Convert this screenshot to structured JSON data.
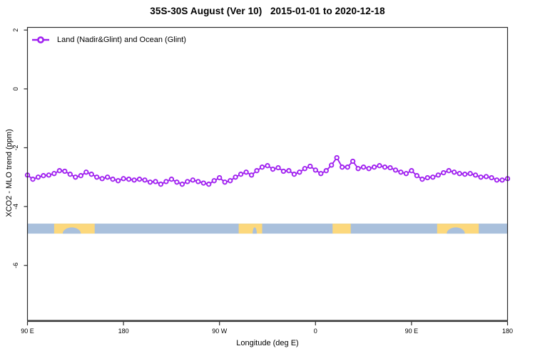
{
  "title": "35S-30S August (Ver 10)   2015-01-01 to 2020-12-18",
  "legend": {
    "label": "Land (Nadir&Glint) and Ocean (Glint)"
  },
  "axes": {
    "xlabel": "Longitude (deg E)",
    "ylabel": "XCO2 - MLO trend (ppm)"
  },
  "chart_data": {
    "type": "line",
    "title": "35S-30S August (Ver 10)   2015-01-01 to 2020-12-18",
    "xlabel": "Longitude (deg E)",
    "ylabel": "XCO2 - MLO trend (ppm)",
    "legend_position": "top-left",
    "grid": false,
    "x_axis": {
      "description": "Longitude wrapping eastward from 90E through 180, 90W, 0, 90E to 180",
      "range_deg_east_of_90E": [
        0,
        450
      ],
      "tick_offsets_deg": [
        0,
        90,
        180,
        270,
        360,
        450
      ],
      "tick_labels": [
        "90 E",
        "180",
        "90 W",
        "0",
        "90 E",
        "180"
      ]
    },
    "y_axis": {
      "lim": [
        -7.87,
        2.09
      ],
      "ticks": [
        2,
        0,
        -2,
        -4,
        -6
      ],
      "tick_labels": [
        "2",
        "0",
        "-2",
        "-4",
        "-6"
      ]
    },
    "series": [
      {
        "name": "Land (Nadir&Glint) and Ocean (Glint)",
        "color": "#A020F0",
        "marker": "open-circle",
        "x_start_deg": 0,
        "x_step_deg": 5,
        "values": [
          -2.93,
          -3.07,
          -3.0,
          -2.95,
          -2.93,
          -2.88,
          -2.78,
          -2.8,
          -2.9,
          -3.0,
          -2.95,
          -2.83,
          -2.9,
          -3.0,
          -3.05,
          -3.0,
          -3.07,
          -3.12,
          -3.05,
          -3.07,
          -3.1,
          -3.07,
          -3.1,
          -3.17,
          -3.15,
          -3.24,
          -3.15,
          -3.07,
          -3.17,
          -3.24,
          -3.15,
          -3.1,
          -3.15,
          -3.2,
          -3.24,
          -3.12,
          -3.02,
          -3.17,
          -3.12,
          -3.0,
          -2.9,
          -2.83,
          -2.93,
          -2.78,
          -2.66,
          -2.61,
          -2.73,
          -2.68,
          -2.8,
          -2.78,
          -2.9,
          -2.83,
          -2.71,
          -2.63,
          -2.76,
          -2.88,
          -2.78,
          -2.59,
          -2.34,
          -2.66,
          -2.66,
          -2.46,
          -2.71,
          -2.66,
          -2.71,
          -2.66,
          -2.61,
          -2.66,
          -2.68,
          -2.76,
          -2.83,
          -2.88,
          -2.78,
          -2.95,
          -3.07,
          -3.02,
          -3.0,
          -2.93,
          -2.85,
          -2.78,
          -2.83,
          -2.88,
          -2.9,
          -2.88,
          -2.93,
          -3.0,
          -2.98,
          -3.02,
          -3.1,
          -3.1,
          -3.05
        ]
      }
    ],
    "land_ocean_band": {
      "description": "Strip along longitude axis showing land (yellow) vs ocean (blue)",
      "y_range": [
        -4.92,
        -4.58
      ],
      "ocean_color": "#A9C0DC",
      "land_color": "#FCD87C",
      "land_segments_deg": [
        [
          25,
          63
        ],
        [
          198,
          220
        ],
        [
          286,
          303
        ],
        [
          384,
          423
        ]
      ],
      "ocean_notches_deg": [
        [
          33,
          50
        ],
        [
          211,
          215
        ],
        [
          393,
          410
        ]
      ]
    },
    "colors": {
      "series": "#A020F0",
      "axis": "#2b2b2b",
      "x_axis_line": "#3f3f3f",
      "text": "#000000",
      "background": "#ffffff"
    }
  }
}
